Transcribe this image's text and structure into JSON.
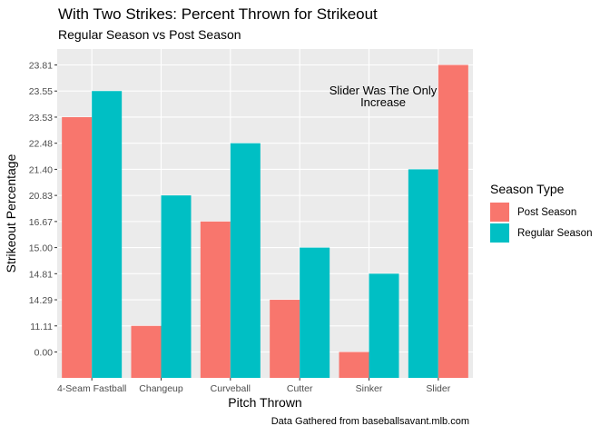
{
  "chart_data": {
    "type": "bar",
    "title": "With Two Strikes: Percent Thrown for Strikeout",
    "subtitle": "Regular Season vs Post Season",
    "xlabel": "Pitch Thrown",
    "ylabel": "Strikeout Percentage",
    "caption": "Data Gathered from baseballsavant.mlb.com",
    "annotation": "Slider Was The Only Increase",
    "categories": [
      "4-Seam Fastball",
      "Changeup",
      "Curveball",
      "Cutter",
      "Sinker",
      "Slider"
    ],
    "y_ticks": [
      "0.00",
      "11.11",
      "14.29",
      "14.81",
      "15.00",
      "16.67",
      "20.83",
      "21.40",
      "22.48",
      "23.53",
      "23.55",
      "23.81"
    ],
    "y_axis_scale": "categorical (ordered label positions)",
    "series": [
      {
        "name": "Post Season",
        "color": "#F8766D",
        "values": [
          23.53,
          11.11,
          16.67,
          14.29,
          0.0,
          23.81
        ]
      },
      {
        "name": "Regular Season",
        "color": "#00BFC4",
        "values": [
          23.55,
          20.83,
          22.48,
          15.0,
          14.81,
          21.4
        ]
      }
    ],
    "series_order_per_category": [
      [
        "Post Season",
        "Regular Season"
      ],
      [
        "Post Season",
        "Regular Season"
      ],
      [
        "Post Season",
        "Regular Season"
      ],
      [
        "Post Season",
        "Regular Season"
      ],
      [
        "Post Season",
        "Regular Season"
      ],
      [
        "Regular Season",
        "Post Season"
      ]
    ],
    "legend": {
      "title": "Season Type",
      "position": "right"
    },
    "grid": true,
    "panel_background": "#EBEBEB"
  }
}
